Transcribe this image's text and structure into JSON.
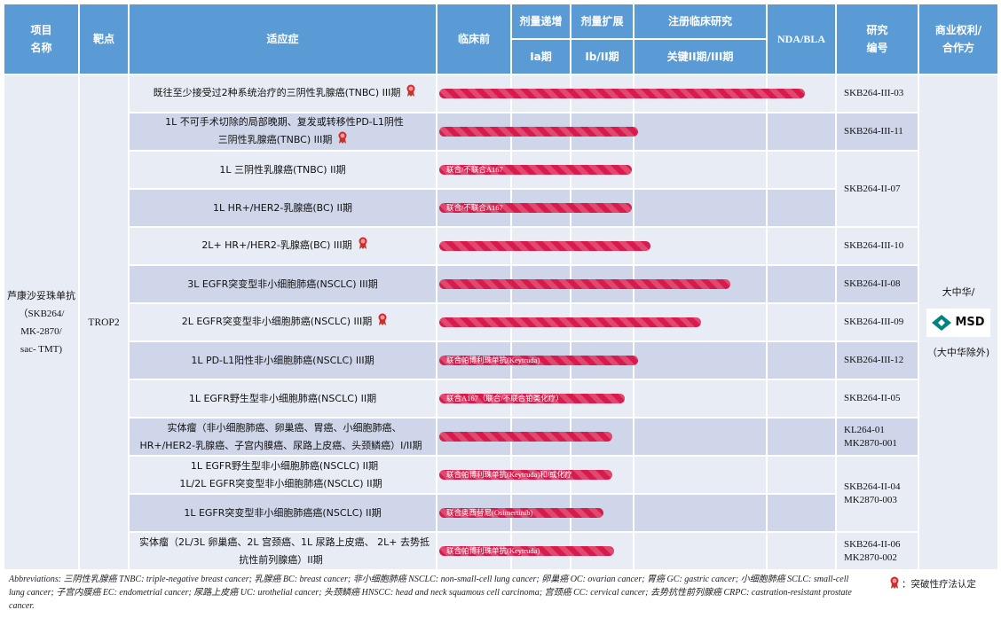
{
  "header": {
    "project": "项目\n名称",
    "target": "靶点",
    "indication": "适应症",
    "preclinical": "临床前",
    "dose_escalation": "剂量递增",
    "dose_expansion": "剂量扩展",
    "registration": "注册临床研究",
    "phase_ia": "Ia期",
    "phase_ib_ii": "Ib/II期",
    "pivotal": "关键II期/III期",
    "nda_bla": "NDA/BLA",
    "study_id": "研究\n编号",
    "commercial": "商业权利/\n合作方"
  },
  "project": {
    "name": "芦康沙妥珠单抗\n（SKB264/\nMK-2870/\nsac- TMT)",
    "target": "TROP2"
  },
  "partner": {
    "top": "大中华/",
    "logo": "MSD",
    "bottom": "（大中华除外)"
  },
  "stage_scale_note": "progress measured in stage columns: 0 preclinical start, 1 Ia, 2 Ib/II, 3 pivotal II/III, 4 NDA/BLA, 5 end",
  "colors": {
    "header": "#5b9bd5",
    "row_light": "#e8ecf5",
    "row_dark": "#cfd6ea",
    "bar": "#d81b4e",
    "bar_stripe": "#e0486e"
  },
  "rows": [
    {
      "indication": "既往至少接受过2种系统治疗的三阴性乳腺癌(TNBC) III期",
      "breakthrough": true,
      "progress": 4.56,
      "bar_label": "",
      "study_id": "SKB264-III-03"
    },
    {
      "indication": "1L 不可手术切除的局部晚期、复发或转移性PD-L1阴性\n三阴性乳腺癌(TNBC) III期",
      "breakthrough": true,
      "progress": 3.04,
      "bar_label": "",
      "study_id": "SKB264-III-11"
    },
    {
      "indication": "1L 三阴性乳腺癌(TNBC) II期",
      "breakthrough": false,
      "progress": 2.99,
      "bar_label": "联合/不联合A167",
      "study_id": "SKB264-II-07"
    },
    {
      "indication": "1L HR+/HER2-乳腺癌(BC) II期",
      "breakthrough": false,
      "progress": 2.99,
      "bar_label": "联合/不联合A167",
      "study_id": ""
    },
    {
      "indication": "2L+ HR+/HER2-乳腺癌(BC) III期",
      "breakthrough": true,
      "progress": 3.13,
      "bar_label": "",
      "study_id": "SKB264-III-10"
    },
    {
      "indication": "3L EGFR突变型非小细胞肺癌(NSCLC) III期",
      "breakthrough": false,
      "progress": 3.73,
      "bar_label": "",
      "study_id": "SKB264-II-08"
    },
    {
      "indication": "2L EGFR突变型非小细胞肺癌(NSCLC) III期",
      "breakthrough": true,
      "progress": 3.51,
      "bar_label": "",
      "study_id": "SKB264-III-09"
    },
    {
      "indication": "1L PD-L1阳性非小细胞肺癌(NSCLC) III期",
      "breakthrough": false,
      "progress": 3.04,
      "bar_label": "联合帕博利珠单抗(Keytruda)",
      "study_id": "SKB264-III-12"
    },
    {
      "indication": "1L EGFR野生型非小细胞肺癌(NSCLC) II期",
      "breakthrough": false,
      "progress": 2.87,
      "bar_label": "联合A167（联合/不联合铂类化疗）",
      "study_id": "SKB264-II-05"
    },
    {
      "indication": "实体瘤（非小细胞肺癌、卵巢癌、胃癌、小细胞肺癌、\nHR+/HER2-乳腺癌、子宫内膜癌、尿路上皮癌、头颈鳞癌）I/II期",
      "breakthrough": false,
      "progress": 2.68,
      "bar_label": "",
      "study_id": "KL264-01\nMK2870-001"
    },
    {
      "indication": "1L EGFR野生型非小细胞肺癌(NSCLC) II期\n1L/2L EGFR突变型非小细胞肺癌(NSCLC) II期",
      "breakthrough": false,
      "progress": 2.68,
      "bar_label": "联合帕博利珠单抗(Keytruda)和/或化疗",
      "study_id": "SKB264-II-04\nMK2870-003"
    },
    {
      "indication": "1L EGFR突变型非小细胞肺癌癌(NSCLC) II期",
      "breakthrough": false,
      "progress": 2.54,
      "bar_label": "联合奥西替尼(Osimertinib)",
      "study_id": ""
    },
    {
      "indication": "实体瘤（2L/3L 卵巢癌、2L 宫颈癌、1L 尿路上皮癌、 2L+ 去势抵\n抗性前列腺癌）II期",
      "breakthrough": false,
      "progress": 2.7,
      "bar_label": "联合帕博利珠单抗(Keytruda)",
      "study_id": "SKB264-II-06\nMK2870-002"
    }
  ],
  "footer": {
    "abbreviations": "Abbreviations: 三阴性乳腺癌 TNBC: triple-negative breast cancer; 乳腺癌 BC: breast cancer; 非小细胞肺癌 NSCLC: non-small-cell lung cancer; 卵巢癌 OC: ovarian cancer; 胃癌 GC: gastric cancer; 小细胞肺癌 SCLC: small-cell lung cancer; 子宫内膜癌 EC: endometrial cancer; 尿路上皮癌 UC: urothelial cancer; 头颈鳞癌 HNSCC: head and neck squamous cell carcinoma; 宫颈癌 CC: cervical cancer; 去势抗性前列腺癌 CRPC: castration-resistant prostate cancer.",
    "legend": "：突破性疗法认定"
  }
}
